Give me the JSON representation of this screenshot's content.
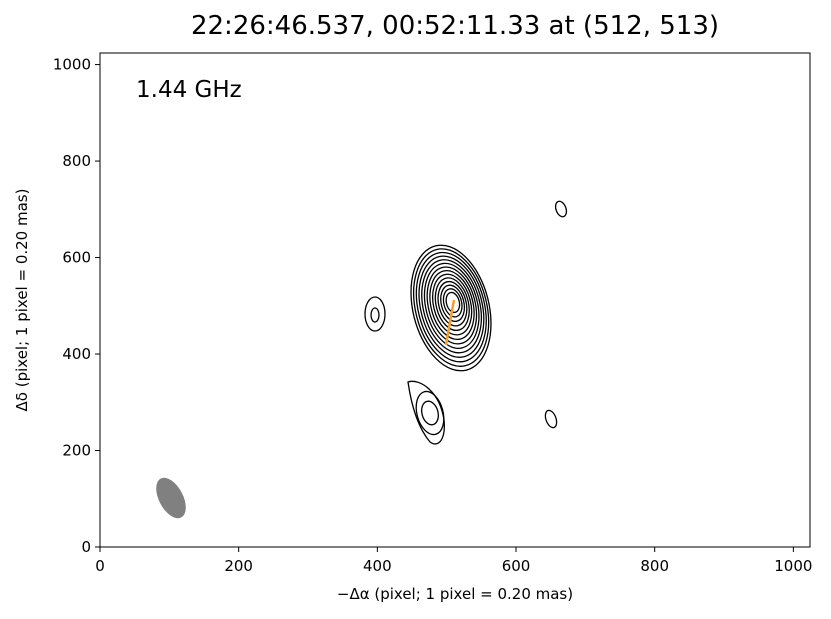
{
  "chart_data": {
    "type": "contour",
    "title": "22:26:46.537, 00:52:11.33 at (512, 513)",
    "annotation": "1.44 GHz",
    "xlabel": "−Δα (pixel; 1 pixel = 0.20 mas)",
    "ylabel": "Δδ (pixel; 1 pixel = 0.20 mas)",
    "xlim": [
      0,
      1024
    ],
    "ylim": [
      0,
      1024
    ],
    "xticks": [
      0,
      200,
      400,
      600,
      800,
      1000
    ],
    "yticks": [
      0,
      200,
      400,
      600,
      800,
      1000
    ]
  }
}
